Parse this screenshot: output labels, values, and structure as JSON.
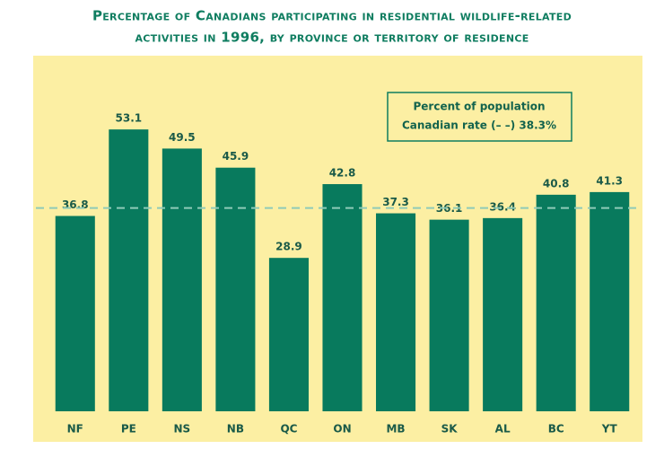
{
  "chart_data": {
    "type": "bar",
    "title": [
      "Percentage of Canadians participating in residential wildlife-related",
      "activities in 1996, by province or territory of residence"
    ],
    "legend_title": "Percent of population",
    "reference_line": {
      "value": 38.3,
      "label": "Canadian rate (– –) 38.3%"
    },
    "categories": [
      "NF",
      "PE",
      "NS",
      "NB",
      "QC",
      "ON",
      "MB",
      "SK",
      "AL",
      "BC",
      "YT"
    ],
    "values": [
      36.8,
      53.1,
      49.5,
      45.9,
      28.9,
      42.8,
      37.3,
      36.1,
      36.4,
      40.8,
      41.3
    ],
    "color": "#087a5d",
    "ylim": [
      0,
      67
    ]
  }
}
